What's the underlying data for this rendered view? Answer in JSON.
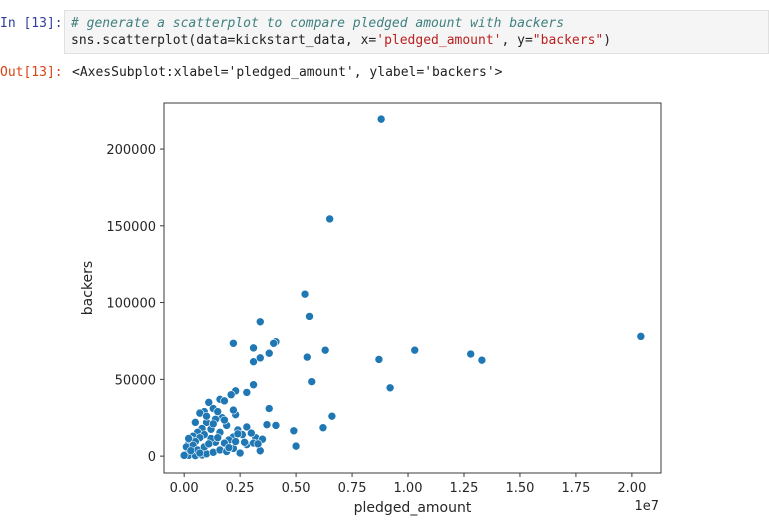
{
  "cell": {
    "in_prompt": "In [13]:",
    "out_prompt": "Out[13]:",
    "code_comment": "# generate a scatterplot to compare pledged amount with backers",
    "code_call_prefix": "sns.scatterplot(data=kickstart_data, x=",
    "code_x_arg": "'pledged_amount'",
    "code_mid": ", y=",
    "code_y_arg": "\"backers\"",
    "code_suffix": ")",
    "output_text": "<AxesSubplot:xlabel='pledged_amount', ylabel='backers'>"
  },
  "chart_data": {
    "type": "scatter",
    "xlabel": "pledged_amount",
    "ylabel": "backers",
    "x_offset_text": "1e7",
    "xlim": [
      -0.09,
      2.13
    ],
    "ylim": [
      -11000,
      230000
    ],
    "xticks": [
      0.0,
      0.25,
      0.5,
      0.75,
      1.0,
      1.25,
      1.5,
      1.75,
      2.0
    ],
    "xtick_labels": [
      "0.00",
      "0.25",
      "0.50",
      "0.75",
      "1.00",
      "1.25",
      "1.50",
      "1.75",
      "2.00"
    ],
    "yticks": [
      0,
      50000,
      100000,
      150000,
      200000
    ],
    "ytick_labels": [
      "0",
      "50000",
      "100000",
      "150000",
      "200000"
    ],
    "marker_color": "#1f77b4",
    "grid": false,
    "points": [
      [
        0.88,
        219500
      ],
      [
        0.65,
        154500
      ],
      [
        0.54,
        105500
      ],
      [
        0.56,
        91000
      ],
      [
        0.34,
        87500
      ],
      [
        0.22,
        73500
      ],
      [
        0.41,
        74500
      ],
      [
        0.4,
        73500
      ],
      [
        0.31,
        70500
      ],
      [
        0.38,
        67000
      ],
      [
        0.31,
        61500
      ],
      [
        0.34,
        64000
      ],
      [
        0.55,
        64500
      ],
      [
        0.63,
        69000
      ],
      [
        0.87,
        63000
      ],
      [
        1.03,
        69000
      ],
      [
        1.28,
        66500
      ],
      [
        1.33,
        62500
      ],
      [
        2.04,
        78000
      ],
      [
        0.57,
        48500
      ],
      [
        0.92,
        44500
      ],
      [
        0.31,
        46500
      ],
      [
        0.23,
        42500
      ],
      [
        0.21,
        40000
      ],
      [
        0.28,
        41500
      ],
      [
        0.16,
        37000
      ],
      [
        0.18,
        36000
      ],
      [
        0.11,
        35000
      ],
      [
        0.13,
        31000
      ],
      [
        0.09,
        29000
      ],
      [
        0.07,
        28000
      ],
      [
        0.38,
        31000
      ],
      [
        0.23,
        27000
      ],
      [
        0.37,
        20500
      ],
      [
        0.41,
        20000
      ],
      [
        0.49,
        16500
      ],
      [
        0.66,
        26000
      ],
      [
        0.62,
        18500
      ],
      [
        0.28,
        19000
      ],
      [
        0.5,
        6500
      ],
      [
        0.17,
        25000
      ],
      [
        0.05,
        22000
      ],
      [
        0.1,
        22000
      ],
      [
        0.14,
        24000
      ],
      [
        0.19,
        20000
      ],
      [
        0.24,
        17000
      ],
      [
        0.26,
        14000
      ],
      [
        0.32,
        12000
      ],
      [
        0.35,
        11000
      ],
      [
        0.3,
        15000
      ],
      [
        0.22,
        12500
      ],
      [
        0.2,
        10500
      ],
      [
        0.16,
        15500
      ],
      [
        0.12,
        17500
      ],
      [
        0.08,
        18000
      ],
      [
        0.06,
        15500
      ],
      [
        0.04,
        13000
      ],
      [
        0.03,
        10500
      ],
      [
        0.02,
        8000
      ],
      [
        0.01,
        6000
      ],
      [
        0.01,
        1000
      ],
      [
        0.02,
        500
      ],
      [
        0.05,
        300
      ],
      [
        0.08,
        700
      ],
      [
        0.1,
        1500
      ],
      [
        0.13,
        2500
      ],
      [
        0.16,
        4000
      ],
      [
        0.19,
        3000
      ],
      [
        0.22,
        5000
      ],
      [
        0.25,
        2000
      ],
      [
        0.28,
        7500
      ],
      [
        0.31,
        8500
      ],
      [
        0.34,
        3500
      ],
      [
        0.27,
        9000
      ],
      [
        0.33,
        8000
      ],
      [
        0.14,
        9000
      ],
      [
        0.12,
        11500
      ],
      [
        0.09,
        14000
      ],
      [
        0.07,
        12000
      ],
      [
        0.05,
        9500
      ],
      [
        0.04,
        7000
      ],
      [
        0.06,
        4000
      ],
      [
        0.09,
        6000
      ],
      [
        0.11,
        8000
      ],
      [
        0.15,
        12000
      ],
      [
        0.18,
        8500
      ],
      [
        0.2,
        5500
      ],
      [
        0.23,
        9500
      ],
      [
        0.18,
        23500
      ],
      [
        0.22,
        30000
      ],
      [
        0.15,
        29000
      ],
      [
        0.1,
        26000
      ],
      [
        0.13,
        21000
      ],
      [
        0.03,
        3500
      ],
      [
        0.0,
        500
      ],
      [
        0.07,
        2000
      ],
      [
        0.02,
        11500
      ],
      [
        0.24,
        14500
      ]
    ]
  }
}
